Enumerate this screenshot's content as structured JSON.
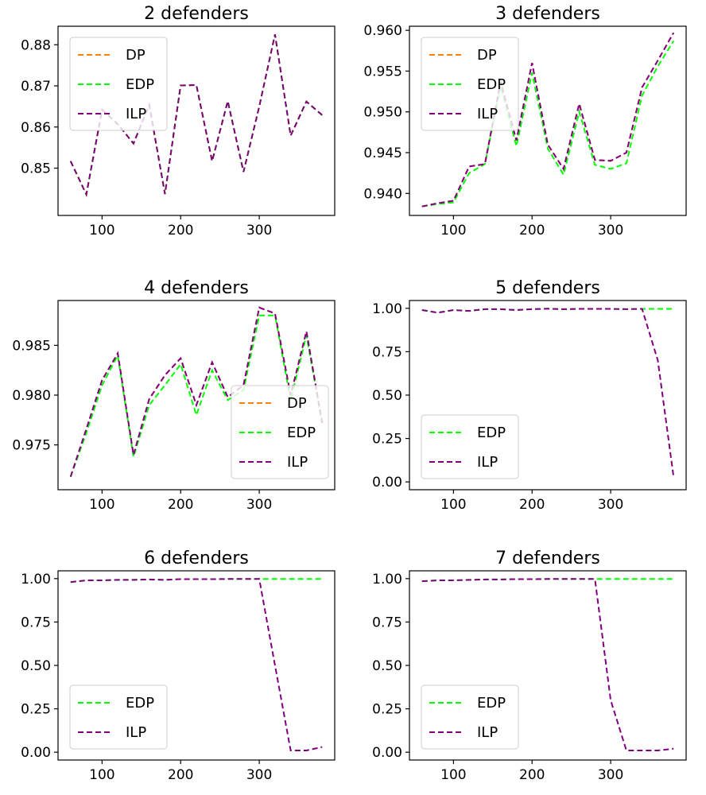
{
  "colors": {
    "DP": "#ff7f0e",
    "EDP": "#00ff00",
    "ILP": "#800080"
  },
  "chart_data": [
    {
      "type": "line",
      "title": "2 defenders",
      "ylim": [
        0.8385,
        0.8845
      ],
      "yticks": [
        0.85,
        0.86,
        0.87,
        0.88
      ],
      "ytick_labels": [
        "0.85",
        "0.86",
        "0.87",
        "0.88"
      ],
      "xlim": [
        44,
        396
      ],
      "xticks": [
        100,
        200,
        300
      ],
      "xtick_labels": [
        "100",
        "200",
        "300"
      ],
      "legend": {
        "placement": "upper-left",
        "entries": [
          "DP",
          "EDP",
          "ILP"
        ]
      },
      "x": [
        60,
        80,
        100,
        120,
        140,
        160,
        180,
        200,
        220,
        240,
        260,
        280,
        300,
        320,
        340,
        360,
        380
      ],
      "series": [
        {
          "name": "DP",
          "values": [
            0.8517,
            0.8436,
            0.8642,
            0.8607,
            0.856,
            0.8654,
            0.8437,
            0.8701,
            0.8702,
            0.8517,
            0.8663,
            0.8491,
            0.865,
            0.8825,
            0.8579,
            0.8662,
            0.8629
          ]
        },
        {
          "name": "EDP",
          "values": [
            0.8517,
            0.8436,
            0.8642,
            0.8607,
            0.856,
            0.8654,
            0.8437,
            0.8701,
            0.8702,
            0.8517,
            0.8663,
            0.8491,
            0.865,
            0.8825,
            0.8579,
            0.8662,
            0.8629
          ]
        },
        {
          "name": "ILP",
          "values": [
            0.8517,
            0.8436,
            0.8642,
            0.8607,
            0.856,
            0.8654,
            0.8437,
            0.8701,
            0.8702,
            0.8517,
            0.8663,
            0.8491,
            0.865,
            0.8825,
            0.8579,
            0.8662,
            0.8629
          ]
        }
      ]
    },
    {
      "type": "line",
      "title": "3 defenders",
      "ylim": [
        0.9373,
        0.9605
      ],
      "yticks": [
        0.94,
        0.945,
        0.95,
        0.955,
        0.96
      ],
      "ytick_labels": [
        "0.940",
        "0.945",
        "0.950",
        "0.955",
        "0.960"
      ],
      "xlim": [
        44,
        396
      ],
      "xticks": [
        100,
        200,
        300
      ],
      "xtick_labels": [
        "100",
        "200",
        "300"
      ],
      "legend": {
        "placement": "upper-left",
        "entries": [
          "DP",
          "EDP",
          "ILP"
        ]
      },
      "x": [
        60,
        80,
        100,
        120,
        140,
        160,
        180,
        200,
        220,
        240,
        260,
        280,
        300,
        320,
        340,
        360,
        380
      ],
      "series": [
        {
          "name": "DP",
          "values": [
            0.9384,
            0.9388,
            0.9391,
            0.9433,
            0.9436,
            0.9537,
            0.9465,
            0.956,
            0.946,
            0.943,
            0.951,
            0.9441,
            0.944,
            0.945,
            0.953,
            0.9563,
            0.9597
          ]
        },
        {
          "name": "EDP",
          "values": [
            0.9384,
            0.9387,
            0.9389,
            0.9425,
            0.9436,
            0.9532,
            0.9458,
            0.9548,
            0.9455,
            0.9423,
            0.95,
            0.9435,
            0.943,
            0.9437,
            0.952,
            0.9556,
            0.9587
          ]
        },
        {
          "name": "ILP",
          "values": [
            0.9384,
            0.9388,
            0.9391,
            0.9433,
            0.9436,
            0.9537,
            0.9465,
            0.956,
            0.946,
            0.943,
            0.951,
            0.9441,
            0.944,
            0.945,
            0.953,
            0.9563,
            0.9597
          ]
        }
      ]
    },
    {
      "type": "line",
      "title": "4 defenders",
      "ylim": [
        0.9705,
        0.9895
      ],
      "yticks": [
        0.975,
        0.98,
        0.985
      ],
      "ytick_labels": [
        "0.975",
        "0.980",
        "0.985"
      ],
      "xlim": [
        44,
        396
      ],
      "xticks": [
        100,
        200,
        300
      ],
      "xtick_labels": [
        "100",
        "200",
        "300"
      ],
      "legend": {
        "placement": "lower-right",
        "entries": [
          "DP",
          "EDP",
          "ILP"
        ]
      },
      "x": [
        60,
        80,
        100,
        120,
        140,
        160,
        180,
        200,
        220,
        240,
        260,
        280,
        300,
        320,
        340,
        360,
        380
      ],
      "series": [
        {
          "name": "DP",
          "values": [
            0.9718,
            0.9766,
            0.9815,
            0.9842,
            0.974,
            0.9796,
            0.982,
            0.9837,
            0.979,
            0.9833,
            0.9798,
            0.981,
            0.9888,
            0.9882,
            0.98,
            0.9864,
            0.9772
          ]
        },
        {
          "name": "EDP",
          "values": [
            0.9718,
            0.9762,
            0.981,
            0.984,
            0.9738,
            0.979,
            0.981,
            0.9831,
            0.978,
            0.9825,
            0.9795,
            0.9805,
            0.988,
            0.988,
            0.9795,
            0.986,
            0.9772
          ]
        },
        {
          "name": "ILP",
          "values": [
            0.9718,
            0.9766,
            0.9815,
            0.9842,
            0.974,
            0.9796,
            0.982,
            0.9837,
            0.979,
            0.9833,
            0.9798,
            0.981,
            0.9888,
            0.9882,
            0.98,
            0.9864,
            0.9772
          ]
        }
      ]
    },
    {
      "type": "line",
      "title": "5 defenders",
      "ylim": [
        -0.045,
        1.045
      ],
      "yticks": [
        0.0,
        0.25,
        0.5,
        0.75,
        1.0
      ],
      "ytick_labels": [
        "0.00",
        "0.25",
        "0.50",
        "0.75",
        "1.00"
      ],
      "xlim": [
        44,
        396
      ],
      "xticks": [
        100,
        200,
        300
      ],
      "xtick_labels": [
        "100",
        "200",
        "300"
      ],
      "legend": {
        "placement": "lower-left",
        "entries": [
          "EDP",
          "ILP"
        ]
      },
      "x": [
        60,
        80,
        100,
        120,
        140,
        160,
        180,
        200,
        220,
        240,
        260,
        280,
        300,
        320,
        340,
        360,
        380
      ],
      "series": [
        {
          "name": "EDP",
          "values": [
            0.99,
            0.975,
            0.99,
            0.985,
            0.995,
            0.995,
            0.99,
            0.995,
            0.998,
            0.995,
            0.997,
            0.997,
            0.997,
            0.995,
            0.997,
            0.997,
            0.997
          ]
        },
        {
          "name": "ILP",
          "values": [
            0.99,
            0.975,
            0.99,
            0.985,
            0.995,
            0.995,
            0.99,
            0.995,
            0.998,
            0.995,
            0.997,
            0.997,
            0.997,
            0.995,
            0.997,
            0.7,
            0.03
          ]
        }
      ]
    },
    {
      "type": "line",
      "title": "6 defenders",
      "ylim": [
        -0.045,
        1.045
      ],
      "yticks": [
        0.0,
        0.25,
        0.5,
        0.75,
        1.0
      ],
      "ytick_labels": [
        "0.00",
        "0.25",
        "0.50",
        "0.75",
        "1.00"
      ],
      "xlim": [
        44,
        396
      ],
      "xticks": [
        100,
        200,
        300
      ],
      "xtick_labels": [
        "100",
        "200",
        "300"
      ],
      "legend": {
        "placement": "lower-left",
        "entries": [
          "EDP",
          "ILP"
        ]
      },
      "x": [
        60,
        80,
        100,
        120,
        140,
        160,
        180,
        200,
        220,
        240,
        260,
        280,
        300,
        320,
        340,
        360,
        380
      ],
      "series": [
        {
          "name": "EDP",
          "values": [
            0.98,
            0.99,
            0.99,
            0.993,
            0.993,
            0.995,
            0.993,
            0.997,
            0.997,
            0.997,
            0.998,
            0.998,
            0.998,
            0.998,
            0.998,
            0.998,
            0.998
          ]
        },
        {
          "name": "ILP",
          "values": [
            0.98,
            0.99,
            0.99,
            0.993,
            0.993,
            0.995,
            0.993,
            0.997,
            0.997,
            0.997,
            0.998,
            0.998,
            0.998,
            0.5,
            0.01,
            0.01,
            0.03
          ]
        }
      ]
    },
    {
      "type": "line",
      "title": "7 defenders",
      "ylim": [
        -0.045,
        1.045
      ],
      "yticks": [
        0.0,
        0.25,
        0.5,
        0.75,
        1.0
      ],
      "ytick_labels": [
        "0.00",
        "0.25",
        "0.50",
        "0.75",
        "1.00"
      ],
      "xlim": [
        44,
        396
      ],
      "xticks": [
        100,
        200,
        300
      ],
      "xtick_labels": [
        "100",
        "200",
        "300"
      ],
      "legend": {
        "placement": "lower-left",
        "entries": [
          "EDP",
          "ILP"
        ]
      },
      "x": [
        60,
        80,
        100,
        120,
        140,
        160,
        180,
        200,
        220,
        240,
        260,
        280,
        300,
        320,
        340,
        360,
        380
      ],
      "series": [
        {
          "name": "EDP",
          "values": [
            0.985,
            0.99,
            0.99,
            0.993,
            0.995,
            0.995,
            0.997,
            0.997,
            0.998,
            0.998,
            0.998,
            0.998,
            0.998,
            0.998,
            0.998,
            0.998,
            0.998
          ]
        },
        {
          "name": "ILP",
          "values": [
            0.985,
            0.99,
            0.99,
            0.993,
            0.995,
            0.995,
            0.997,
            0.997,
            0.998,
            0.998,
            0.998,
            0.998,
            0.3,
            0.01,
            0.01,
            0.01,
            0.02
          ]
        }
      ]
    }
  ]
}
